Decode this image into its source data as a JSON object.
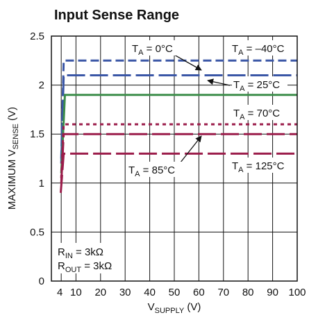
{
  "chart_data": {
    "type": "line",
    "title": "Input Sense Range",
    "xlabel": {
      "main": "V",
      "sub": "SUPPLY",
      "suffix": " (V)"
    },
    "ylabel": {
      "main": "MAXIMUM V",
      "sub": "SENSE",
      "suffix": " (V)"
    },
    "xlim": [
      0,
      100
    ],
    "ylim": [
      0,
      2.5
    ],
    "xticks": [
      4,
      10,
      20,
      30,
      40,
      50,
      60,
      70,
      80,
      90,
      100
    ],
    "yticks": [
      0,
      0.5,
      1,
      1.5,
      2,
      2.5
    ],
    "ytick_labels": [
      "0",
      "0.5",
      "1",
      "1.5",
      "2",
      "2.5"
    ],
    "grid": true,
    "series": [
      {
        "name": "TA = –40°C",
        "color": "#3a56a6",
        "dash": "dashed",
        "x": [
          4,
          5,
          100
        ],
        "y": [
          1.25,
          2.25,
          2.25
        ]
      },
      {
        "name": "TA = 0°C",
        "color": "#3a56a6",
        "dash": "longdash",
        "x": [
          4,
          5,
          100
        ],
        "y": [
          1.2,
          2.1,
          2.1
        ]
      },
      {
        "name": "TA = 25°C",
        "color": "#3c8d4a",
        "dash": "solid",
        "x": [
          4,
          5.5,
          100
        ],
        "y": [
          1.1,
          1.9,
          1.9
        ]
      },
      {
        "name": "TA = 70°C",
        "color": "#9b1c4a",
        "dash": "dotted",
        "x": [
          4,
          5,
          100
        ],
        "y": [
          1.05,
          1.6,
          1.6
        ]
      },
      {
        "name": "TA = 85°C",
        "color": "#9b1c4a",
        "dash": "longdash",
        "x": [
          4,
          5,
          100
        ],
        "y": [
          1.0,
          1.5,
          1.5
        ]
      },
      {
        "name": "TA = 125°C",
        "color": "#9b1c4a",
        "dash": "longdash",
        "x": [
          3.8,
          5,
          100
        ],
        "y": [
          0.9,
          1.3,
          1.3
        ]
      }
    ],
    "annotations": [
      {
        "main": "T",
        "sub": "A",
        "rest": " = 0°C"
      },
      {
        "main": "T",
        "sub": "A",
        "rest": " = –40°C"
      },
      {
        "main": "T",
        "sub": "A",
        "rest": " = 25°C"
      },
      {
        "main": "T",
        "sub": "A",
        "rest": " = 70°C"
      },
      {
        "main": "T",
        "sub": "A",
        "rest": " = 85°C"
      },
      {
        "main": "T",
        "sub": "A",
        "rest": " = 125°C"
      }
    ],
    "conditions": [
      {
        "main": "R",
        "sub": "IN",
        "rest": " = 3kΩ"
      },
      {
        "main": "R",
        "sub": "OUT",
        "rest": " = 3kΩ"
      }
    ]
  }
}
